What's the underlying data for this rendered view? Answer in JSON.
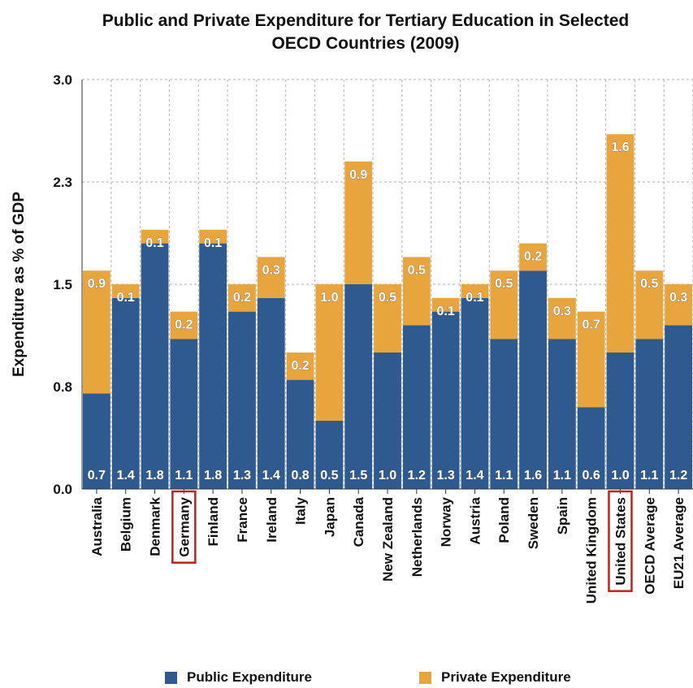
{
  "chart_data": {
    "type": "bar",
    "stacked": true,
    "title": "Public and Private Expenditure for Tertiary Education in Selected OECD Countries (2009)",
    "ylabel": "Expenditure as % of GDP",
    "xlabel": "",
    "ylim": [
      0,
      3.0
    ],
    "yticks": [
      "0.0",
      "0.8",
      "1.5",
      "2.3",
      "3.0"
    ],
    "ytick_values": [
      0,
      0.75,
      1.5,
      2.25,
      3.0
    ],
    "grid": true,
    "legend_position": "bottom",
    "highlighted_categories": [
      "Germany",
      "United States"
    ],
    "categories": [
      "Australia",
      "Belgium",
      "Denmark",
      "Germany",
      "Finland",
      "France",
      "Ireland",
      "Italy",
      "Japan",
      "Canada",
      "New Zealand",
      "Netherlands",
      "Norway",
      "Austria",
      "Poland",
      "Sweden",
      "Spain",
      "United Kingdom",
      "United States",
      "OECD Average",
      "EU21 Average"
    ],
    "series": [
      {
        "name": "Public Expenditure",
        "color": "#2f5a8f",
        "values": [
          0.7,
          1.4,
          1.8,
          1.1,
          1.8,
          1.3,
          1.4,
          0.8,
          0.5,
          1.5,
          1.0,
          1.2,
          1.3,
          1.4,
          1.1,
          1.6,
          1.1,
          0.6,
          1.0,
          1.1,
          1.2
        ],
        "labels": [
          "0.7",
          "1.4",
          "1.8",
          "1.1",
          "1.8",
          "1.3",
          "1.4",
          "0.8",
          "0.5",
          "1.5",
          "1.0",
          "1.2",
          "1.3",
          "1.4",
          "1.1",
          "1.6",
          "1.1",
          "0.6",
          "1.0",
          "1.1",
          "1.2"
        ]
      },
      {
        "name": "Private Expenditure",
        "color": "#e8a53d",
        "values": [
          0.9,
          0.1,
          0.1,
          0.2,
          0.1,
          0.2,
          0.3,
          0.2,
          1.0,
          0.9,
          0.5,
          0.5,
          0.1,
          0.1,
          0.5,
          0.2,
          0.3,
          0.7,
          1.6,
          0.5,
          0.3
        ],
        "labels": [
          "0.9",
          "0.1",
          "0.1",
          "0.2",
          "0.1",
          "0.2",
          "0.3",
          "0.2",
          "1.0",
          "0.9",
          "0.5",
          "0.5",
          "0.1",
          "0.1",
          "0.5",
          "0.2",
          "0.3",
          "0.7",
          "1.6",
          "0.5",
          "0.3"
        ]
      }
    ]
  },
  "legend": {
    "public": "Public Expenditure",
    "private": "Private Expenditure"
  }
}
